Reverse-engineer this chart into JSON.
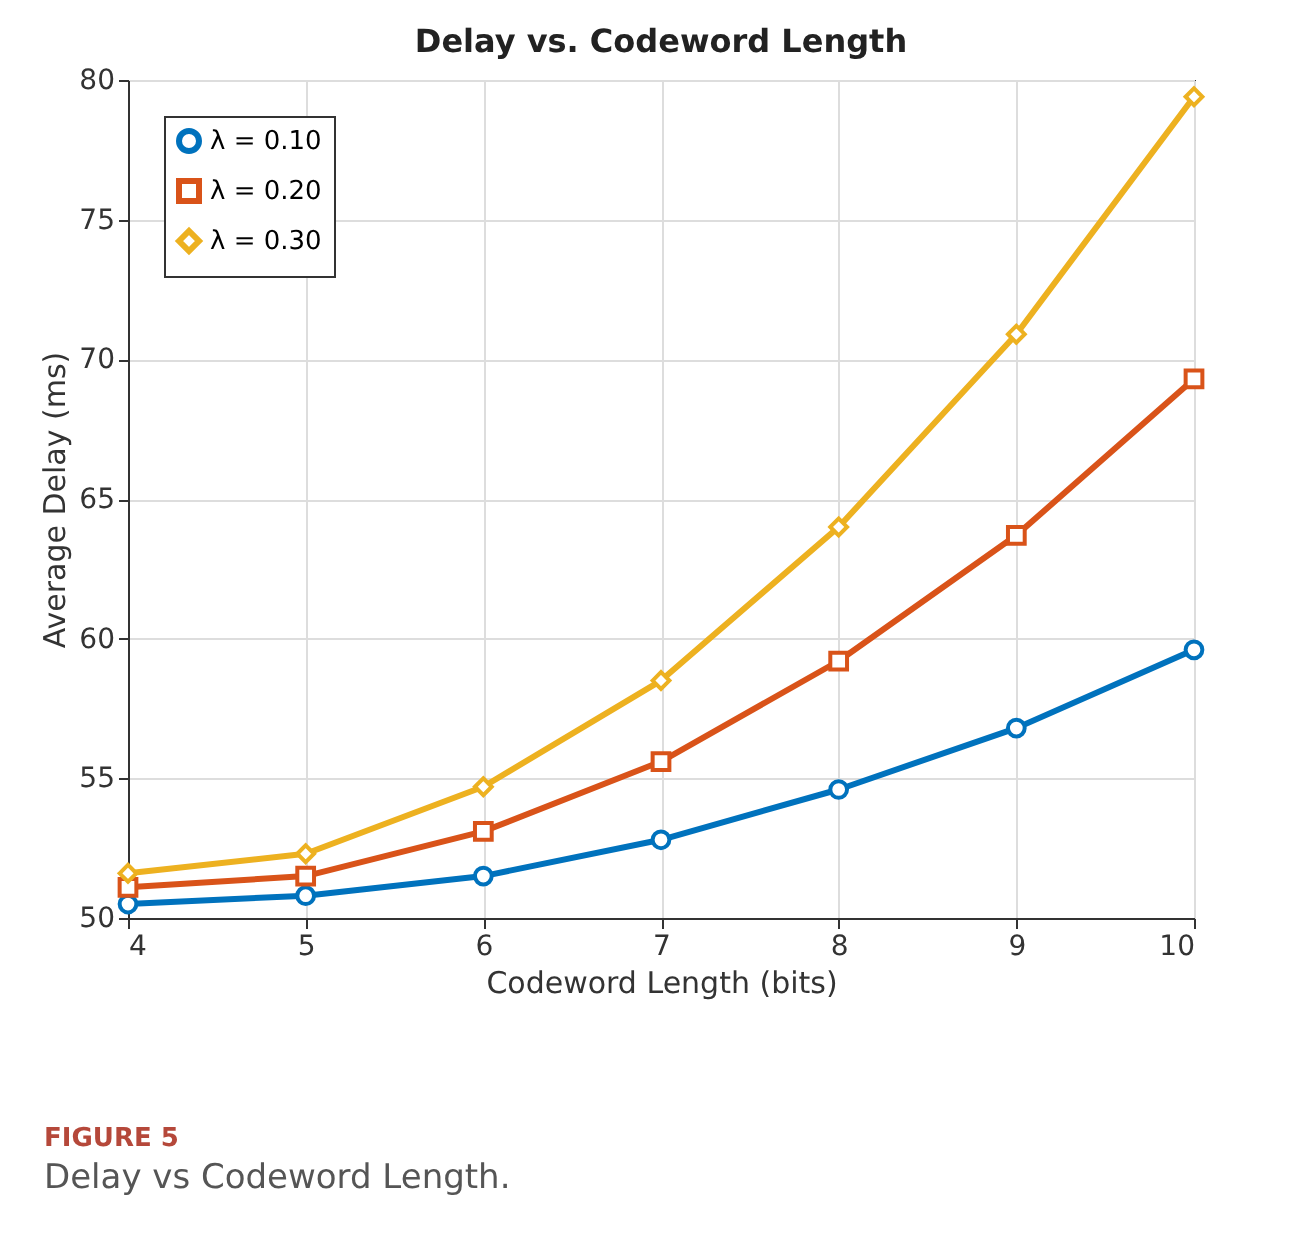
{
  "chart_data": {
    "type": "line",
    "title": "Delay vs. Codeword Length",
    "xlabel": "Codeword Length (bits)",
    "ylabel": "Average Delay (ms)",
    "x": [
      4,
      5,
      6,
      7,
      8,
      9,
      10
    ],
    "series": [
      {
        "name": "λ = 0.10",
        "color": "#0072bd",
        "marker": "circle",
        "values": [
          50.5,
          50.8,
          51.5,
          52.8,
          54.6,
          56.8,
          59.6
        ]
      },
      {
        "name": "λ = 0.20",
        "color": "#d95319",
        "marker": "square",
        "values": [
          51.1,
          51.5,
          53.1,
          55.6,
          59.2,
          63.7,
          69.3
        ]
      },
      {
        "name": "λ = 0.30",
        "color": "#edb120",
        "marker": "diamond",
        "values": [
          51.6,
          52.3,
          54.7,
          58.5,
          64.0,
          70.9,
          79.4
        ]
      }
    ],
    "xlim": [
      4,
      10
    ],
    "xticks": [
      4,
      5,
      6,
      7,
      8,
      9,
      10
    ],
    "ylim": [
      50,
      80
    ],
    "yticks": [
      50,
      55,
      60,
      65,
      70,
      75,
      80
    ],
    "grid": true,
    "legend": "top left",
    "annotations": [
      "FIGURE 5",
      "Delay vs Codeword Length."
    ]
  }
}
